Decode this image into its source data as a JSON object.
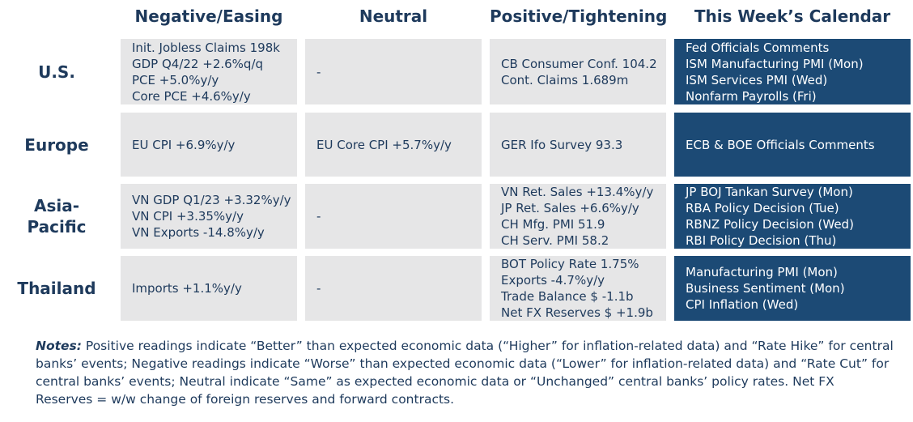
{
  "columns": {
    "negative": "Negative/Easing",
    "neutral": "Neutral",
    "positive": "Positive/Tightening",
    "calendar": "This Week’s Calendar"
  },
  "rows": [
    {
      "region": "U.S.",
      "negative": [
        "Init. Jobless Claims 198k",
        "GDP Q4/22 +2.6%q/q",
        "PCE +5.0%y/y",
        "Core PCE +4.6%y/y"
      ],
      "neutral": [
        "-"
      ],
      "positive": [
        "CB Consumer Conf. 104.2",
        "Cont. Claims 1.689m"
      ],
      "calendar": [
        "Fed Officials Comments",
        "ISM Manufacturing PMI (Mon)",
        "ISM Services PMI (Wed)",
        "Nonfarm Payrolls (Fri)"
      ]
    },
    {
      "region": "Europe",
      "negative": [
        "EU CPI +6.9%y/y"
      ],
      "neutral": [
        "EU Core CPI +5.7%y/y"
      ],
      "positive": [
        "GER Ifo Survey 93.3"
      ],
      "calendar": [
        "ECB & BOE Officials Comments"
      ]
    },
    {
      "region": "Asia-\nPacific",
      "negative": [
        "VN GDP Q1/23 +3.32%y/y",
        "VN CPI +3.35%y/y",
        "VN Exports -14.8%y/y"
      ],
      "neutral": [
        "-"
      ],
      "positive": [
        "VN Ret. Sales +13.4%y/y",
        "JP Ret. Sales +6.6%y/y",
        "CH Mfg. PMI 51.9",
        "CH Serv. PMI 58.2"
      ],
      "calendar": [
        "JP BOJ Tankan Survey (Mon)",
        "RBA Policy Decision (Tue)",
        "RBNZ Policy Decision (Wed)",
        "RBI Policy Decision (Thu)"
      ]
    },
    {
      "region": "Thailand",
      "negative": [
        "Imports +1.1%y/y"
      ],
      "neutral": [
        "-"
      ],
      "positive": [
        "BOT Policy Rate 1.75%",
        "Exports -4.7%y/y",
        "Trade Balance $ -1.1b",
        "Net FX Reserves $ +1.9b"
      ],
      "calendar": [
        "Manufacturing PMI (Mon)",
        "Business Sentiment (Mon)",
        "CPI Inflation (Wed)"
      ]
    }
  ],
  "notes": {
    "label": "Notes:",
    "text": " Positive readings indicate “Better” than expected economic data (“Higher” for inflation-related data) and “Rate Hike” for central banks’ events; Negative readings indicate “Worse” than expected economic data (“Lower” for inflation-related data) and “Rate Cut” for central banks’ events; Neutral indicate “Same” as expected economic data or “Unchanged” central banks’ policy rates. Net FX Reserves = w/w change of foreign reserves and forward contracts."
  }
}
